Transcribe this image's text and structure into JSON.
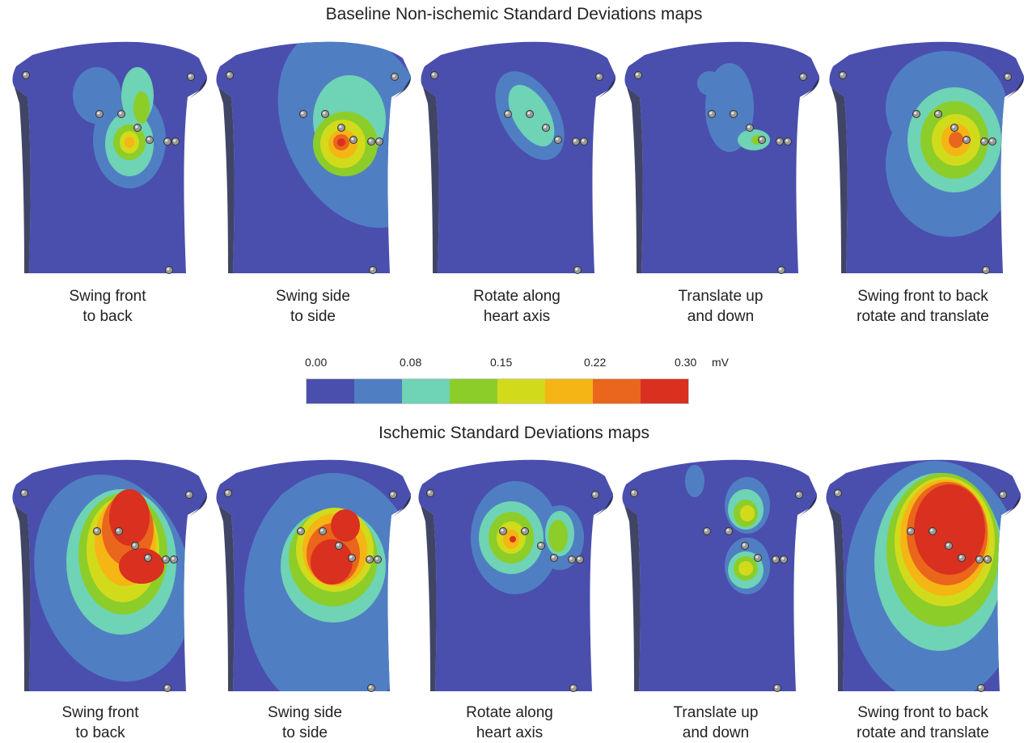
{
  "figure": {
    "top_title": "Baseline Non-ischemic Standard Deviations maps",
    "bottom_title": "Ischemic Standard Deviations maps"
  },
  "colorbar": {
    "ticks": [
      "0.00",
      "0.08",
      "0.15",
      "0.22",
      "0.30"
    ],
    "unit": "mV",
    "colors": [
      "#4a4fae",
      "#4f7fc2",
      "#6fd3b5",
      "#8ccd2a",
      "#d2da1c",
      "#f5b514",
      "#e9661c",
      "#d9301f"
    ]
  },
  "panels": {
    "top": [
      {
        "line1": "Swing front",
        "line2": "to back"
      },
      {
        "line1": "Swing side",
        "line2": "to side"
      },
      {
        "line1": "Rotate along",
        "line2": "heart axis"
      },
      {
        "line1": "Translate up",
        "line2": "and down"
      },
      {
        "line1": "Swing front to back",
        "line2": "rotate and translate"
      }
    ],
    "bottom": [
      {
        "line1": "Swing front",
        "line2": "to back"
      },
      {
        "line1": "Swing side",
        "line2": "to side"
      },
      {
        "line1": "Rotate along",
        "line2": "heart axis"
      },
      {
        "line1": "Translate up",
        "line2": "and down"
      },
      {
        "line1": "Swing front to back",
        "line2": "rotate and translate"
      }
    ]
  }
}
